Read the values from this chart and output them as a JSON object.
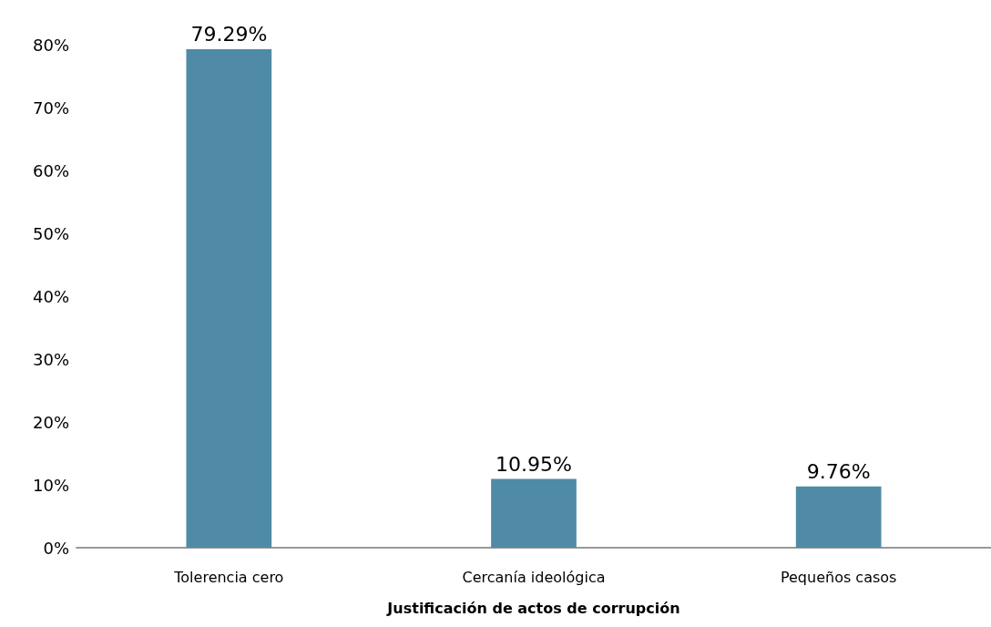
{
  "chart_data": {
    "type": "bar",
    "xlabel": "Justificación de actos de corrupción",
    "categories": [
      "Tolerencia cero",
      "Cercanía ideológica",
      "Pequeños casos"
    ],
    "values": [
      79.29,
      10.95,
      9.76
    ],
    "color": "#4f8ba7",
    "value_labels": [
      "79.29%",
      "10.95%",
      "9.76%"
    ],
    "ylim": [
      0,
      80
    ],
    "yticks": [
      {
        "value": 0,
        "label": "0%"
      },
      {
        "value": 10,
        "label": "10%"
      },
      {
        "value": 20,
        "label": "20%"
      },
      {
        "value": 30,
        "label": "30%"
      },
      {
        "value": 40,
        "label": "40%"
      },
      {
        "value": 50,
        "label": "50%"
      },
      {
        "value": 60,
        "label": "60%"
      },
      {
        "value": 70,
        "label": "70%"
      },
      {
        "value": 80,
        "label": "80%"
      }
    ],
    "grid": false
  }
}
